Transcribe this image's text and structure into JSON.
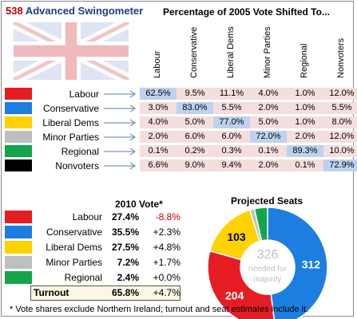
{
  "app": {
    "title_num": "538",
    "title_text": "Advanced Swingometer"
  },
  "matrix": {
    "title": "Percentage of 2005 Vote Shifted To...",
    "columns": [
      "Labour",
      "Conservative",
      "Liberal Dems",
      "Minor Parties",
      "Regional",
      "Nonvoters"
    ],
    "rows": [
      {
        "label": "Labour",
        "color": "#e61c24",
        "values": [
          "62.5%",
          "9.5%",
          "11.1%",
          "4.0%",
          "1.0%",
          "12.0%"
        ]
      },
      {
        "label": "Conservative",
        "color": "#1c7ee0",
        "values": [
          "3.0%",
          "83.0%",
          "5.5%",
          "2.0%",
          "1.0%",
          "5.5%"
        ]
      },
      {
        "label": "Liberal Dems",
        "color": "#ffd200",
        "values": [
          "4.0%",
          "5.0%",
          "77.0%",
          "5.0%",
          "1.0%",
          "8.0%"
        ]
      },
      {
        "label": "Minor Parties",
        "color": "#bfbfbf",
        "values": [
          "2.0%",
          "6.0%",
          "6.0%",
          "72.0%",
          "2.0%",
          "12.0%"
        ]
      },
      {
        "label": "Regional",
        "color": "#14a54a",
        "values": [
          "0.1%",
          "0.2%",
          "0.3%",
          "0.1%",
          "89.3%",
          "10.0%"
        ]
      },
      {
        "label": "Nonvoters",
        "color": "#000000",
        "values": [
          "6.6%",
          "9.0%",
          "9.4%",
          "2.0%",
          "0.1%",
          "72.9%"
        ]
      }
    ]
  },
  "vote": {
    "title": "2010 Vote*",
    "rows": [
      {
        "label": "Labour",
        "color": "#e61c24",
        "value": "27.4%",
        "change": "-8.8%"
      },
      {
        "label": "Conservative",
        "color": "#1c7ee0",
        "value": "35.5%",
        "change": "+2.3%"
      },
      {
        "label": "Liberal Dems",
        "color": "#ffd200",
        "value": "27.5%",
        "change": "+4.8%"
      },
      {
        "label": "Minor Parties",
        "color": "#bfbfbf",
        "value": "7.2%",
        "change": "+1.7%"
      },
      {
        "label": "Regional",
        "color": "#14a54a",
        "value": "2.4%",
        "change": "+0.0%"
      }
    ],
    "turnout": {
      "label": "Turnout",
      "value": "65.8%",
      "change": "+4.7%"
    }
  },
  "seats": {
    "title": "Projected Seats",
    "center_number": "326",
    "center_line1": "needed for",
    "center_line2": "majority",
    "segments": [
      {
        "party": "Conservative",
        "seats": 312,
        "color": "#1c7ee0",
        "label": "312"
      },
      {
        "party": "Labour",
        "seats": 204,
        "color": "#e61c24",
        "label": "204"
      },
      {
        "party": "Liberal Dems",
        "seats": 103,
        "color": "#ffd200",
        "label": "103"
      },
      {
        "party": "Minor Parties",
        "seats": 8,
        "color": "#bfbfbf",
        "label": ""
      },
      {
        "party": "Regional",
        "seats": 23,
        "color": "#14a54a",
        "label": ""
      }
    ]
  },
  "footnote": "* Vote shares exclude Northern Ireland; turnout and seat estimates include it."
}
